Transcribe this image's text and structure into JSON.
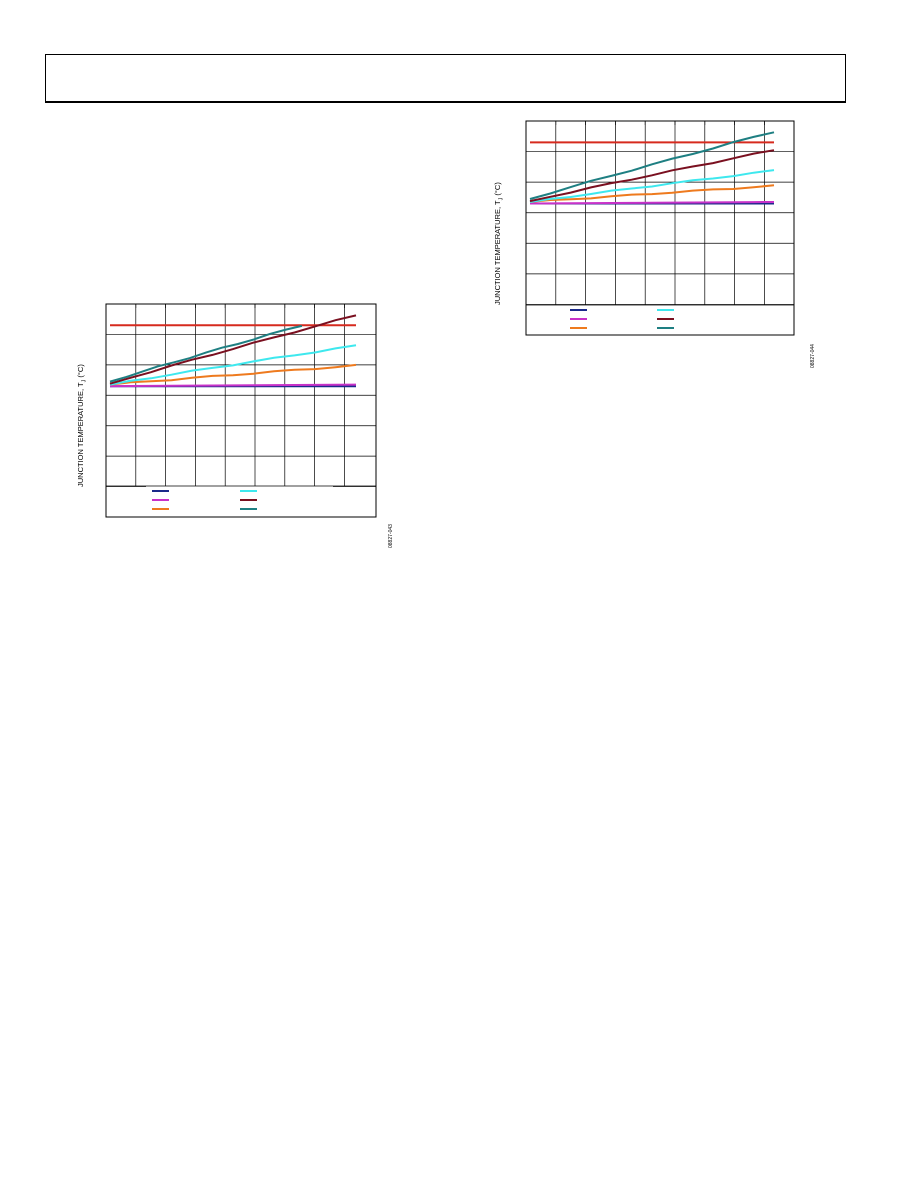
{
  "header": {
    "text": ""
  },
  "chart_data": [
    {
      "type": "line",
      "ylabel": "JUNCTION TEMPERATURE, T",
      "ylabel_sub": "J",
      "ylabel_unit": " (°C)",
      "figure_id": "08827-043",
      "x_divisions": 8,
      "y_divisions": 7,
      "grid": true,
      "legend_position": "bottom",
      "series": [
        {
          "color": "#d62a1e",
          "values": [
            0.7,
            0.7
          ]
        },
        {
          "color": "#1b2a8a",
          "values": [
            0.0,
            0.0
          ]
        },
        {
          "color": "#c832c8",
          "values": [
            0.0,
            0.05
          ]
        },
        {
          "color": "#ee7a1e",
          "values": [
            0.05,
            0.68
          ]
        },
        {
          "color": "#3ee8ee",
          "values": [
            0.05,
            1.33
          ]
        },
        {
          "color": "#7a1020",
          "values": [
            0.08,
            2.33
          ]
        },
        {
          "color": "#1e7f82",
          "values": [
            0.15,
            2.0
          ]
        }
      ]
    },
    {
      "type": "line",
      "ylabel": "JUNCTION TEMPERATURE, T",
      "ylabel_sub": "J",
      "ylabel_unit": " (°C)",
      "figure_id": "08827-044",
      "x_divisions": 8,
      "y_divisions": 7,
      "grid": true,
      "legend_position": "bottom",
      "series": [
        {
          "color": "#d62a1e",
          "values": [
            0.7,
            0.7
          ]
        },
        {
          "color": "#1b2a8a",
          "values": [
            0.0,
            0.0
          ]
        },
        {
          "color": "#c832c8",
          "values": [
            0.0,
            0.05
          ]
        },
        {
          "color": "#ee7a1e",
          "values": [
            0.05,
            0.58
          ]
        },
        {
          "color": "#3ee8ee",
          "values": [
            0.05,
            1.08
          ]
        },
        {
          "color": "#7a1020",
          "values": [
            0.08,
            1.75
          ]
        },
        {
          "color": "#1e7f82",
          "values": [
            0.15,
            2.35
          ]
        }
      ]
    }
  ]
}
